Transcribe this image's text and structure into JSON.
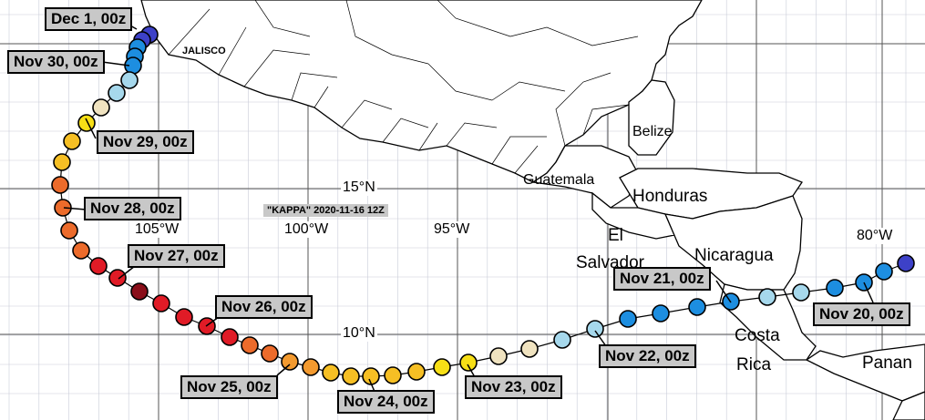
{
  "storm_label": "\"KAPPA\" 2020-11-16 12Z",
  "grid_labels": {
    "lon_105": "105°W",
    "lon_100": "100°W",
    "lon_95": "95°W",
    "lon_80": "80°W",
    "lat_15": "15°N",
    "lat_10": "10°N"
  },
  "place_labels": {
    "jalisco": "JALISCO",
    "belize": "Belize",
    "guatemala": "Guatemala",
    "honduras": "Honduras",
    "el": "El",
    "salvador": "Salvador",
    "nicaragua": "Nicaragua",
    "costa": "Costa",
    "rica": "Rica",
    "panama": "Panan"
  },
  "date_labels": {
    "dec1": "Dec 1, 00z",
    "nov30": "Nov 30, 00z",
    "nov29": "Nov 29, 00z",
    "nov28": "Nov 28, 00z",
    "nov27": "Nov 27, 00z",
    "nov26": "Nov 26, 00z",
    "nov25": "Nov 25, 00z",
    "nov24": "Nov 24, 00z",
    "nov23": "Nov 23, 00z",
    "nov22": "Nov 22, 00z",
    "nov21": "Nov 21, 00z",
    "nov20": "Nov 20, 00z"
  },
  "intensity_colors": {
    "dark_blue": "#3d41c8",
    "blue": "#1d8ee0",
    "light_blue": "#a6d8ec",
    "cream": "#f0e3c0",
    "yellow": "#f7df16",
    "gold": "#f6bf24",
    "orange_light": "#f39a2f",
    "orange": "#ec6b2b",
    "red": "#e01b26",
    "dark_red": "#8a0f1a"
  },
  "track_point_colors": [
    "dark_blue",
    "dark_blue",
    "blue",
    "blue",
    "blue",
    "light_blue",
    "light_blue",
    "cream",
    "yellow",
    "gold",
    "gold",
    "orange",
    "orange",
    "orange",
    "orange",
    "red",
    "red",
    "dark_red",
    "red",
    "red",
    "red",
    "orange",
    "orange",
    "orange_light",
    "gold",
    "gold",
    "gold",
    "gold",
    "gold",
    "yellow",
    "cream",
    "cream",
    "light_blue",
    "light_blue",
    "blue",
    "blue",
    "blue",
    "blue",
    "light_blue",
    "light_blue",
    "blue",
    "blue",
    "blue",
    "dark_blue"
  ]
}
